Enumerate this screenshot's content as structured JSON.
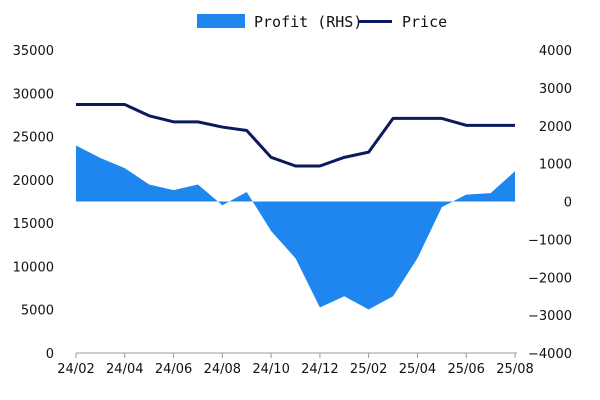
{
  "chart_data": {
    "type": "line",
    "title": "",
    "x": [
      "24/02",
      "24/03",
      "24/04",
      "24/05",
      "24/06",
      "24/07",
      "24/08",
      "24/09",
      "24/10",
      "24/11",
      "24/12",
      "25/01",
      "25/02",
      "25/03",
      "25/04",
      "25/05",
      "25/06",
      "25/07",
      "25/08"
    ],
    "x_tick_labels": [
      "24/02",
      "24/04",
      "24/06",
      "24/08",
      "24/10",
      "24/12",
      "25/02",
      "25/04",
      "25/06",
      "25/08"
    ],
    "left_axis": {
      "min": 0,
      "max": 35000,
      "ticks": [
        "0",
        "5000",
        "10000",
        "15000",
        "20000",
        "25000",
        "30000",
        "35000"
      ]
    },
    "right_axis": {
      "min": -4000,
      "max": 4000,
      "ticks": [
        "−4000",
        "−3000",
        "−2000",
        "−1000",
        "0",
        "1000",
        "2000",
        "3000",
        "4000"
      ]
    },
    "series": [
      {
        "name": "Profit (RHS)",
        "type": "area",
        "axis": "right",
        "color": "#1f86f0",
        "values": [
          1480,
          1150,
          880,
          450,
          300,
          450,
          -100,
          250,
          -780,
          -1500,
          -2800,
          -2500,
          -2850,
          -2500,
          -1500,
          -150,
          180,
          220,
          800
        ]
      },
      {
        "name": "Price",
        "type": "line",
        "axis": "left",
        "color": "#0b1a5c",
        "values": [
          28700,
          28700,
          28700,
          27400,
          26700,
          26700,
          26100,
          25700,
          22600,
          21600,
          21600,
          22600,
          23200,
          27100,
          27100,
          27100,
          26300,
          26300,
          26300
        ]
      }
    ],
    "legend": {
      "position": "top-center",
      "entries": [
        "Profit (RHS)",
        "Price"
      ]
    },
    "grid": false
  }
}
